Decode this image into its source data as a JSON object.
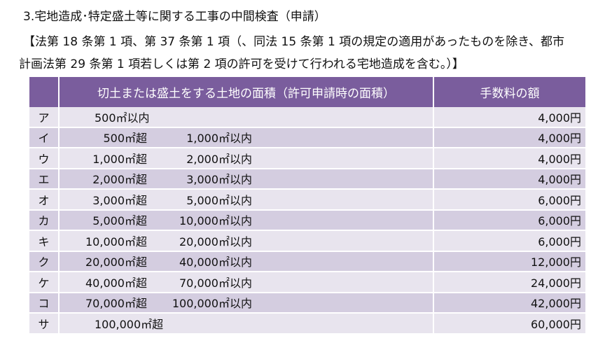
{
  "heading": "3.宅地造成･特定盛土等に関する工事の中間検査（申請）",
  "note": {
    "line1": "【法第 18 条第 1 項、第 37 条第 1 項（、同法 15 条第 1 項の規定の適用があったものを除き、都市",
    "line2": "計画法第 29 条第 1 項若しくは第 2 項の許可を受けて行われる宅地造成を含む。）】"
  },
  "table": {
    "headers": {
      "key": "",
      "area": "切土または盛土をする土地の面積（許可申請時の面積）",
      "fee": "手数料の額"
    },
    "rows": [
      {
        "key": "ア",
        "from": "500㎡以内",
        "to": "",
        "fee": "4,000円"
      },
      {
        "key": "イ",
        "from": "500㎡超",
        "to": "1,000㎡以内",
        "fee": "4,000円"
      },
      {
        "key": "ウ",
        "from": "1,000㎡超",
        "to": "2,000㎡以内",
        "fee": "4,000円"
      },
      {
        "key": "エ",
        "from": "2,000㎡超",
        "to": "3,000㎡以内",
        "fee": "4,000円"
      },
      {
        "key": "オ",
        "from": "3,000㎡超",
        "to": "5,000㎡以内",
        "fee": "6,000円"
      },
      {
        "key": "カ",
        "from": "5,000㎡超",
        "to": "10,000㎡以内",
        "fee": "6,000円"
      },
      {
        "key": "キ",
        "from": "10,000㎡超",
        "to": "20,000㎡以内",
        "fee": "6,000円"
      },
      {
        "key": "ク",
        "from": "20,000㎡超",
        "to": "40,000㎡以内",
        "fee": "12,000円"
      },
      {
        "key": "ケ",
        "from": "40,000㎡超",
        "to": "70,000㎡以内",
        "fee": "24,000円"
      },
      {
        "key": "コ",
        "from": "70,000㎡超",
        "to": "100,000㎡以内",
        "fee": "42,000円"
      },
      {
        "key": "サ",
        "from": "100,000㎡超",
        "to": "",
        "fee": "60,000円"
      }
    ]
  },
  "colors": {
    "header_bg": "#7a5d9d",
    "row_light": "#e8e4ee",
    "row_dark": "#d4cde0"
  }
}
